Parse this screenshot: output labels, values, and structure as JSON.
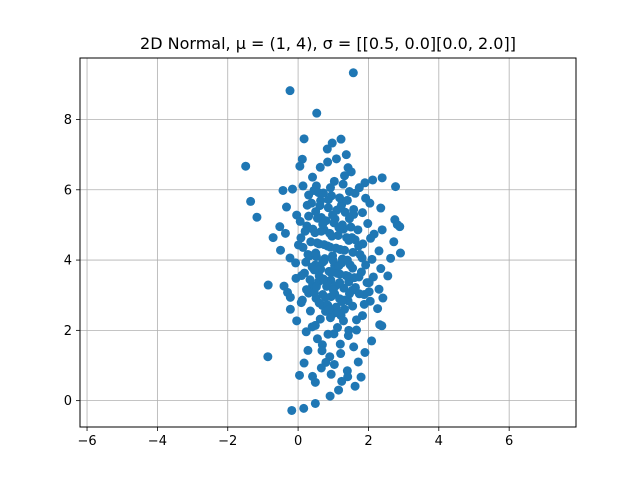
{
  "chart_data": {
    "type": "scatter",
    "title": "2D Normal, μ = (1, 4), σ = [[0.5, 0.0][0.0, 2.0]]",
    "xlabel": "",
    "ylabel": "",
    "xlim": [
      -6.2,
      7.9
    ],
    "ylim": [
      -0.75,
      9.75
    ],
    "xticks": [
      -6,
      -4,
      -2,
      0,
      2,
      4,
      6
    ],
    "yticks": [
      0,
      2,
      4,
      6,
      8
    ],
    "grid": true,
    "marker_color": "#1f77b4",
    "series": [
      {
        "points": [
          [
            1.57,
            9.33
          ],
          [
            -0.23,
            8.82
          ],
          [
            0.53,
            8.18
          ],
          [
            0.17,
            7.45
          ],
          [
            1.22,
            7.44
          ],
          [
            0.97,
            7.33
          ],
          [
            0.83,
            7.16
          ],
          [
            1.37,
            7.0
          ],
          [
            0.12,
            6.87
          ],
          [
            1.09,
            6.88
          ],
          [
            -1.49,
            6.67
          ],
          [
            0.05,
            6.67
          ],
          [
            0.84,
            6.79
          ],
          [
            0.63,
            6.64
          ],
          [
            1.42,
            6.63
          ],
          [
            2.39,
            6.34
          ],
          [
            2.77,
            6.09
          ],
          [
            1.9,
            6.2
          ],
          [
            2.12,
            6.28
          ],
          [
            1.51,
            6.51
          ],
          [
            1.32,
            6.4
          ],
          [
            0.41,
            6.36
          ],
          [
            1.03,
            6.24
          ],
          [
            -0.43,
            5.98
          ],
          [
            -0.16,
            6.02
          ],
          [
            0.14,
            6.11
          ],
          [
            0.52,
            6.11
          ],
          [
            1.74,
            6.06
          ],
          [
            1.46,
            5.95
          ],
          [
            -1.35,
            5.67
          ],
          [
            -0.33,
            5.51
          ],
          [
            0.3,
            5.85
          ],
          [
            0.64,
            5.69
          ],
          [
            1.24,
            5.58
          ],
          [
            1.92,
            5.76
          ],
          [
            2.35,
            5.48
          ],
          [
            1.58,
            5.44
          ],
          [
            -1.17,
            5.22
          ],
          [
            -0.04,
            5.28
          ],
          [
            0.66,
            5.21
          ],
          [
            1.05,
            5.17
          ],
          [
            1.83,
            5.35
          ],
          [
            2.75,
            5.15
          ],
          [
            2.82,
            5.01
          ],
          [
            2.89,
            4.95
          ],
          [
            -0.52,
            4.95
          ],
          [
            0.25,
            4.97
          ],
          [
            0.74,
            4.86
          ],
          [
            1.29,
            4.88
          ],
          [
            2.39,
            4.86
          ],
          [
            2.16,
            4.74
          ],
          [
            -0.36,
            4.76
          ],
          [
            -0.71,
            4.64
          ],
          [
            0.08,
            4.63
          ],
          [
            1.53,
            4.64
          ],
          [
            2.72,
            4.52
          ],
          [
            0.54,
            4.49
          ],
          [
            -0.5,
            4.28
          ],
          [
            0.01,
            4.43
          ],
          [
            0.91,
            4.37
          ],
          [
            1.72,
            4.4
          ],
          [
            2.91,
            4.2
          ],
          [
            2.3,
            4.26
          ],
          [
            -0.23,
            4.06
          ],
          [
            0.33,
            4.12
          ],
          [
            0.74,
            3.98
          ],
          [
            1.26,
            4.03
          ],
          [
            1.82,
            4.06
          ],
          [
            2.63,
            4.05
          ],
          [
            -0.07,
            3.92
          ],
          [
            0.49,
            3.86
          ],
          [
            1.04,
            3.84
          ],
          [
            1.55,
            3.77
          ],
          [
            2.35,
            3.76
          ],
          [
            2.55,
            3.55
          ],
          [
            0.18,
            3.63
          ],
          [
            0.6,
            3.55
          ],
          [
            1.19,
            3.6
          ],
          [
            1.73,
            3.52
          ],
          [
            -0.06,
            3.48
          ],
          [
            0.93,
            3.43
          ],
          [
            1.44,
            3.38
          ],
          [
            2.02,
            3.36
          ],
          [
            -0.85,
            3.29
          ],
          [
            -0.4,
            3.26
          ],
          [
            0.41,
            3.27
          ],
          [
            0.81,
            3.25
          ],
          [
            1.63,
            3.22
          ],
          [
            2.3,
            3.17
          ],
          [
            -0.3,
            3.08
          ],
          [
            0.3,
            3.06
          ],
          [
            1.04,
            3.04
          ],
          [
            1.88,
            3.02
          ],
          [
            2.41,
            2.92
          ],
          [
            -0.22,
            2.94
          ],
          [
            0.51,
            2.91
          ],
          [
            1.31,
            2.86
          ],
          [
            2.05,
            2.83
          ],
          [
            0.09,
            2.79
          ],
          [
            0.69,
            2.71
          ],
          [
            1.55,
            2.69
          ],
          [
            2.26,
            2.62
          ],
          [
            -0.22,
            2.6
          ],
          [
            0.35,
            2.55
          ],
          [
            1.06,
            2.51
          ],
          [
            1.83,
            2.42
          ],
          [
            0.63,
            2.32
          ],
          [
            1.29,
            2.27
          ],
          [
            2.32,
            2.16
          ],
          [
            2.38,
            2.13
          ],
          [
            -0.04,
            2.27
          ],
          [
            0.49,
            2.14
          ],
          [
            1.12,
            2.08
          ],
          [
            1.66,
            2.01
          ],
          [
            0.23,
            1.96
          ],
          [
            0.85,
            1.89
          ],
          [
            1.43,
            1.85
          ],
          [
            2.09,
            1.7
          ],
          [
            0.55,
            1.76
          ],
          [
            1.2,
            1.61
          ],
          [
            0.69,
            1.59
          ],
          [
            1.58,
            1.53
          ],
          [
            1.9,
            1.37
          ],
          [
            0.28,
            1.43
          ],
          [
            1.21,
            1.34
          ],
          [
            0.9,
            1.25
          ],
          [
            -0.86,
            1.25
          ],
          [
            1.71,
            1.1
          ],
          [
            0.17,
            1.07
          ],
          [
            0.79,
            1.09
          ],
          [
            1.03,
            1.03
          ],
          [
            0.66,
            0.93
          ],
          [
            1.4,
            0.85
          ],
          [
            0.04,
            0.72
          ],
          [
            0.41,
            0.69
          ],
          [
            0.94,
            0.75
          ],
          [
            1.41,
            0.68
          ],
          [
            1.79,
            0.67
          ],
          [
            1.24,
            0.55
          ],
          [
            0.49,
            0.52
          ],
          [
            1.62,
            0.41
          ],
          [
            1.15,
            0.3
          ],
          [
            0.91,
            0.13
          ],
          [
            0.49,
            -0.08
          ],
          [
            0.16,
            -0.22
          ],
          [
            -0.18,
            -0.28
          ],
          [
            0.45,
            5.98
          ],
          [
            0.72,
            5.91
          ],
          [
            0.95,
            5.83
          ],
          [
            1.18,
            5.77
          ],
          [
            1.4,
            5.7
          ],
          [
            0.38,
            5.62
          ],
          [
            0.62,
            5.55
          ],
          [
            0.86,
            5.49
          ],
          [
            1.1,
            5.42
          ],
          [
            1.34,
            5.36
          ],
          [
            1.58,
            5.3
          ],
          [
            0.3,
            5.25
          ],
          [
            0.55,
            5.19
          ],
          [
            0.79,
            5.12
          ],
          [
            1.02,
            5.06
          ],
          [
            1.26,
            5.0
          ],
          [
            1.5,
            4.94
          ],
          [
            0.42,
            4.88
          ],
          [
            0.66,
            4.82
          ],
          [
            0.9,
            4.76
          ],
          [
            1.14,
            4.7
          ],
          [
            1.38,
            4.64
          ],
          [
            1.62,
            4.58
          ],
          [
            0.36,
            4.52
          ],
          [
            0.6,
            4.46
          ],
          [
            0.84,
            4.4
          ],
          [
            1.08,
            4.34
          ],
          [
            1.32,
            4.28
          ],
          [
            1.56,
            4.22
          ],
          [
            0.28,
            4.16
          ],
          [
            0.52,
            4.1
          ],
          [
            0.76,
            4.04
          ],
          [
            1.0,
            3.98
          ],
          [
            1.24,
            3.92
          ],
          [
            1.48,
            3.86
          ],
          [
            0.4,
            3.8
          ],
          [
            0.64,
            3.74
          ],
          [
            0.88,
            3.68
          ],
          [
            1.12,
            3.62
          ],
          [
            1.36,
            3.56
          ],
          [
            1.6,
            3.5
          ],
          [
            0.34,
            3.44
          ],
          [
            0.58,
            3.38
          ],
          [
            0.82,
            3.32
          ],
          [
            1.06,
            3.26
          ],
          [
            1.3,
            3.2
          ],
          [
            1.54,
            3.14
          ],
          [
            0.46,
            3.08
          ],
          [
            0.7,
            3.02
          ],
          [
            0.94,
            2.96
          ],
          [
            1.18,
            2.9
          ],
          [
            1.42,
            2.84
          ],
          [
            0.6,
            2.78
          ],
          [
            0.84,
            2.72
          ],
          [
            1.08,
            2.66
          ],
          [
            1.32,
            2.6
          ],
          [
            0.78,
            2.54
          ],
          [
            1.0,
            2.48
          ],
          [
            1.22,
            2.42
          ],
          [
            0.92,
            2.36
          ],
          [
            0.58,
            5.92
          ],
          [
            0.86,
            5.72
          ],
          [
            1.22,
            5.52
          ],
          [
            0.5,
            5.38
          ],
          [
            0.98,
            5.28
          ],
          [
            1.46,
            5.18
          ],
          [
            0.7,
            5.02
          ],
          [
            1.16,
            4.92
          ],
          [
            0.48,
            4.78
          ],
          [
            0.96,
            4.68
          ],
          [
            1.44,
            4.56
          ],
          [
            0.74,
            4.44
          ],
          [
            1.2,
            4.3
          ],
          [
            0.5,
            4.2
          ],
          [
            0.98,
            4.12
          ],
          [
            1.4,
            4.0
          ],
          [
            0.7,
            3.94
          ],
          [
            1.16,
            3.84
          ],
          [
            0.46,
            3.72
          ],
          [
            0.94,
            3.64
          ],
          [
            1.42,
            3.54
          ],
          [
            0.72,
            3.46
          ],
          [
            1.18,
            3.36
          ],
          [
            0.52,
            3.24
          ],
          [
            1.0,
            3.16
          ],
          [
            1.46,
            3.04
          ],
          [
            0.78,
            2.94
          ],
          [
            1.24,
            2.82
          ],
          [
            0.88,
            2.6
          ],
          [
            1.14,
            2.5
          ],
          [
            1.7,
            4.86
          ],
          [
            1.84,
            4.46
          ],
          [
            1.76,
            4.16
          ],
          [
            1.92,
            3.86
          ],
          [
            1.8,
            3.66
          ],
          [
            1.96,
            3.36
          ],
          [
            1.74,
            3.04
          ],
          [
            1.88,
            2.74
          ],
          [
            0.2,
            4.82
          ],
          [
            0.14,
            4.36
          ],
          [
            0.22,
            3.94
          ],
          [
            0.1,
            3.56
          ],
          [
            0.24,
            3.16
          ],
          [
            0.12,
            2.86
          ],
          [
            1.98,
            5.04
          ],
          [
            2.06,
            4.62
          ],
          [
            2.1,
            4.02
          ],
          [
            2.14,
            3.52
          ],
          [
            2.02,
            3.1
          ],
          [
            0.06,
            5.1
          ],
          [
            1.28,
            6.16
          ],
          [
            0.92,
            6.06
          ],
          [
            1.62,
            5.9
          ],
          [
            0.26,
            5.56
          ],
          [
            2.04,
            5.62
          ],
          [
            1.66,
            2.3
          ],
          [
            0.4,
            2.1
          ],
          [
            1.44,
            2.0
          ],
          [
            1.02,
            1.9
          ],
          [
            0.68,
            1.42
          ]
        ]
      }
    ]
  }
}
